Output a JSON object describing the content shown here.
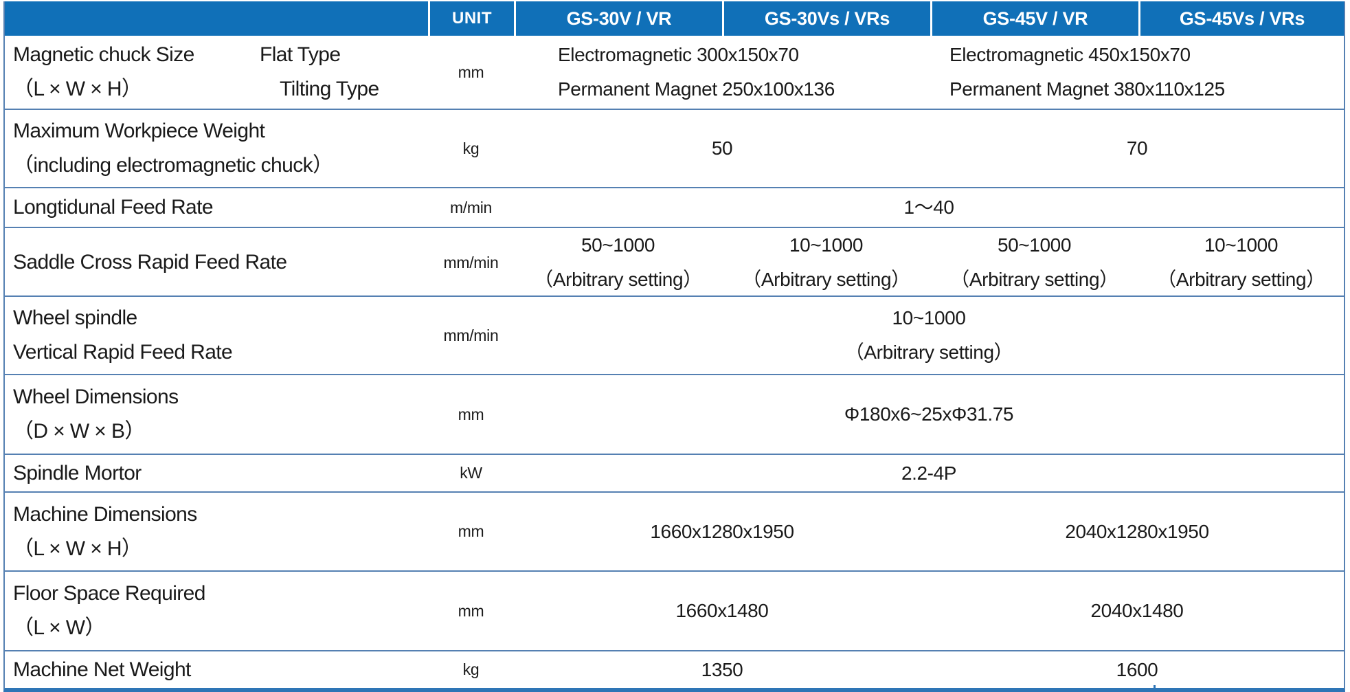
{
  "colors": {
    "header_bg": "#1070B8",
    "header_text": "#FFFFFF",
    "row_border": "#5580B2",
    "outer_border": "#2E75B6",
    "body_text": "#1A1A1A"
  },
  "header": {
    "unit": "UNIT",
    "models": [
      "GS-30V / VR",
      "GS-30Vs / VRs",
      "GS-45V / VR",
      "GS-45Vs / VRs"
    ]
  },
  "rows": [
    {
      "name": "magnetic-chuck-size",
      "label_lines": [
        "Magnetic chuck Size",
        "（L × W × H）"
      ],
      "sub_labels": [
        "Flat Type",
        "Tilting Type"
      ],
      "unit": "mm",
      "cells": [
        {
          "span": 2,
          "lines": [
            "Electromagnetic 300x150x70",
            "Permanent Magnet 250x100x136"
          ]
        },
        {
          "span": 2,
          "lines": [
            "Electromagnetic 450x150x70",
            "Permanent Magnet 380x110x125"
          ]
        }
      ]
    },
    {
      "name": "maximum-workpiece-weight",
      "label_lines": [
        "Maximum Workpiece Weight",
        "（including electromagnetic chuck）"
      ],
      "unit": "kg",
      "cells": [
        {
          "span": 2,
          "lines": [
            "50"
          ]
        },
        {
          "span": 2,
          "lines": [
            "70"
          ]
        }
      ]
    },
    {
      "name": "longitudinal-feed-rate",
      "label_lines": [
        "Longtidunal Feed Rate"
      ],
      "unit": "m/min",
      "cells": [
        {
          "span": 4,
          "lines": [
            "1～40"
          ]
        }
      ]
    },
    {
      "name": "saddle-cross-rapid-feed-rate",
      "label_lines": [
        "Saddle Cross Rapid Feed Rate"
      ],
      "unit": "mm/min",
      "cells": [
        {
          "span": 1,
          "lines": [
            "50~1000",
            "（Arbitrary setting）"
          ]
        },
        {
          "span": 1,
          "lines": [
            "10~1000",
            "（Arbitrary setting）"
          ]
        },
        {
          "span": 1,
          "lines": [
            "50~1000",
            "（Arbitrary setting）"
          ]
        },
        {
          "span": 1,
          "lines": [
            "10~1000",
            "（Arbitrary setting）"
          ]
        }
      ]
    },
    {
      "name": "wheel-spindle-vertical-rapid-feed-rate",
      "label_lines": [
        "Wheel spindle",
        "Vertical Rapid Feed Rate"
      ],
      "unit": "mm/min",
      "cells": [
        {
          "span": 4,
          "lines": [
            "10~1000",
            "（Arbitrary setting）"
          ]
        }
      ]
    },
    {
      "name": "wheel-dimensions",
      "label_lines": [
        "Wheel Dimensions",
        "（D × W × B）"
      ],
      "unit": "mm",
      "cells": [
        {
          "span": 4,
          "lines": [
            "Φ180x6~25xΦ31.75"
          ]
        }
      ]
    },
    {
      "name": "spindle-motor",
      "label_lines": [
        "Spindle Mortor"
      ],
      "unit": "kW",
      "cells": [
        {
          "span": 4,
          "lines": [
            "2.2-4P"
          ]
        }
      ]
    },
    {
      "name": "machine-dimensions",
      "label_lines": [
        "Machine Dimensions",
        "（L × W × H）"
      ],
      "unit": "mm",
      "cells": [
        {
          "span": 2,
          "lines": [
            "1660x1280x1950"
          ]
        },
        {
          "span": 2,
          "lines": [
            "2040x1280x1950"
          ]
        }
      ]
    },
    {
      "name": "floor-space-required",
      "label_lines": [
        "Floor Space Required",
        "（L × W）"
      ],
      "unit": "mm",
      "cells": [
        {
          "span": 2,
          "lines": [
            "1660x1480"
          ]
        },
        {
          "span": 2,
          "lines": [
            "2040x1480"
          ]
        }
      ]
    },
    {
      "name": "machine-net-weight",
      "label_lines": [
        "Machine Net Weight"
      ],
      "unit": "kg",
      "cells": [
        {
          "span": 2,
          "lines": [
            "1350"
          ]
        },
        {
          "span": 2,
          "lines": [
            "1600"
          ]
        }
      ]
    }
  ]
}
